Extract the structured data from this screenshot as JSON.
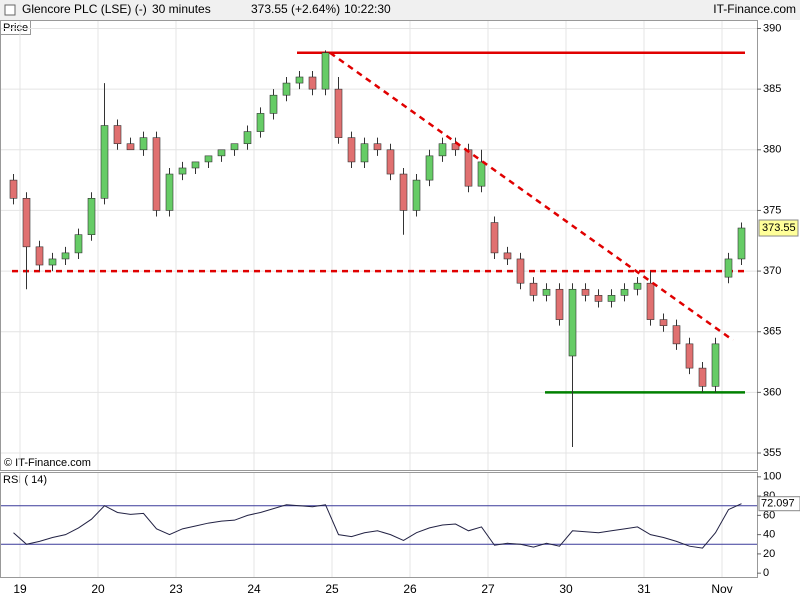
{
  "header": {
    "title": "Glencore PLC (LSE) (-)",
    "interval": "30 minutes",
    "price": "373.55 (+2.64%)",
    "time": "10:22:30",
    "brand": "IT-Finance.com"
  },
  "chart_data": [
    {
      "type": "candlestick",
      "label": "Price",
      "copyright": "© IT-Finance.com",
      "categories": [
        null,
        "19",
        null,
        null,
        null,
        null,
        null,
        "20",
        null,
        null,
        null,
        null,
        null,
        "23",
        null,
        null,
        null,
        null,
        null,
        "24",
        null,
        null,
        null,
        null,
        null,
        "25",
        null,
        null,
        null,
        null,
        null,
        "26",
        null,
        null,
        null,
        null,
        null,
        "27",
        null,
        null,
        null,
        null,
        null,
        "30",
        null,
        null,
        null,
        null,
        null,
        "31",
        null,
        null,
        null,
        null,
        null,
        "Nov",
        null
      ],
      "open": [
        377.5,
        376,
        372,
        370.5,
        371,
        371.5,
        373,
        376,
        382,
        380.5,
        380,
        381,
        375,
        378,
        378.5,
        379,
        379.5,
        380,
        380.5,
        381.5,
        383,
        384.5,
        385.5,
        386,
        385,
        385,
        381,
        379,
        380.5,
        380,
        378,
        375,
        377.5,
        379.5,
        380.5,
        380,
        377,
        374,
        371.5,
        371,
        369,
        368,
        368.5,
        363,
        368.5,
        368,
        367.5,
        368,
        368.5,
        369,
        366,
        365.5,
        364,
        362,
        360.5,
        369.5,
        371
      ],
      "high": [
        378,
        376.5,
        372.5,
        371.5,
        372,
        373.5,
        376.5,
        385.5,
        382.5,
        381,
        381.5,
        381.5,
        378.5,
        379,
        379,
        379.5,
        380,
        380.5,
        382,
        383.5,
        385,
        386,
        386.5,
        386.5,
        388.2,
        386,
        381.5,
        381,
        381,
        380.5,
        378.5,
        378,
        380,
        381,
        381,
        380.5,
        380,
        374.5,
        372,
        371.5,
        369.5,
        369,
        369,
        369,
        369,
        368.5,
        368.5,
        369,
        369.5,
        370,
        366.5,
        366,
        364.5,
        362.5,
        364.5,
        371.5,
        374
      ],
      "low": [
        375.5,
        368.5,
        370,
        370,
        370.5,
        371,
        372.5,
        375.5,
        380,
        380,
        379.5,
        374.5,
        374.5,
        377.5,
        378,
        378.5,
        379,
        379.5,
        380,
        381,
        382.5,
        384,
        385,
        384.5,
        384.5,
        380.5,
        378.5,
        378.5,
        379.5,
        377.5,
        373,
        374.5,
        377,
        379,
        379.5,
        376.5,
        376.5,
        371,
        370.5,
        368.5,
        367.5,
        367.5,
        365.5,
        355.5,
        367.5,
        367,
        367,
        367.5,
        368,
        365.5,
        365,
        363.5,
        361.5,
        360,
        360,
        369,
        370.5
      ],
      "close": [
        376,
        372,
        370.5,
        371,
        371.5,
        373,
        376,
        382,
        380.5,
        380,
        381,
        375,
        378,
        378.5,
        379,
        379.5,
        380,
        380.5,
        381.5,
        383,
        384.5,
        385.5,
        386,
        385,
        388,
        381,
        379,
        380.5,
        380,
        378,
        375,
        377.5,
        379.5,
        380.5,
        380,
        377,
        379,
        371.5,
        371,
        369,
        368,
        368.5,
        366,
        368.5,
        368,
        367.5,
        368,
        368.5,
        369,
        366,
        365.5,
        364,
        362,
        360.5,
        364,
        371,
        373.55
      ],
      "up_color": "#66cc66",
      "down_color": "#e07070",
      "ylim": [
        353.6,
        390.7
      ],
      "yticks": [
        355,
        360,
        365,
        370,
        375,
        380,
        385,
        390
      ],
      "grid": true,
      "levels": [
        {
          "value": 388,
          "color": "#e00000",
          "dashed": false
        },
        {
          "value": 370,
          "color": "#e00000",
          "dashed": true
        },
        {
          "value": 360,
          "color": "#008000",
          "dashed": false
        }
      ],
      "trendline": {
        "values": [
          388,
          364.3
        ],
        "color": "#e00000"
      }
    },
    {
      "type": "line",
      "label": "RSI ( 14)",
      "values": [
        42,
        30,
        33,
        37,
        40,
        47,
        56,
        70,
        63,
        61,
        62,
        46,
        40,
        46,
        49,
        52,
        54,
        55,
        60,
        63,
        67,
        71,
        70,
        69,
        71,
        40,
        38,
        42,
        44,
        40,
        34,
        42,
        47,
        50,
        51,
        44,
        48,
        29,
        31,
        30,
        27,
        31,
        28,
        44,
        43,
        42,
        44,
        46,
        48,
        40,
        37,
        33,
        28,
        26,
        42,
        66,
        72.097
      ],
      "color": "#222244",
      "levels": [
        70,
        30
      ],
      "level_color": "#3a3a9a",
      "ylim": [
        -5,
        105
      ],
      "yticks": [
        0,
        20,
        40,
        60,
        80,
        100
      ]
    }
  ]
}
